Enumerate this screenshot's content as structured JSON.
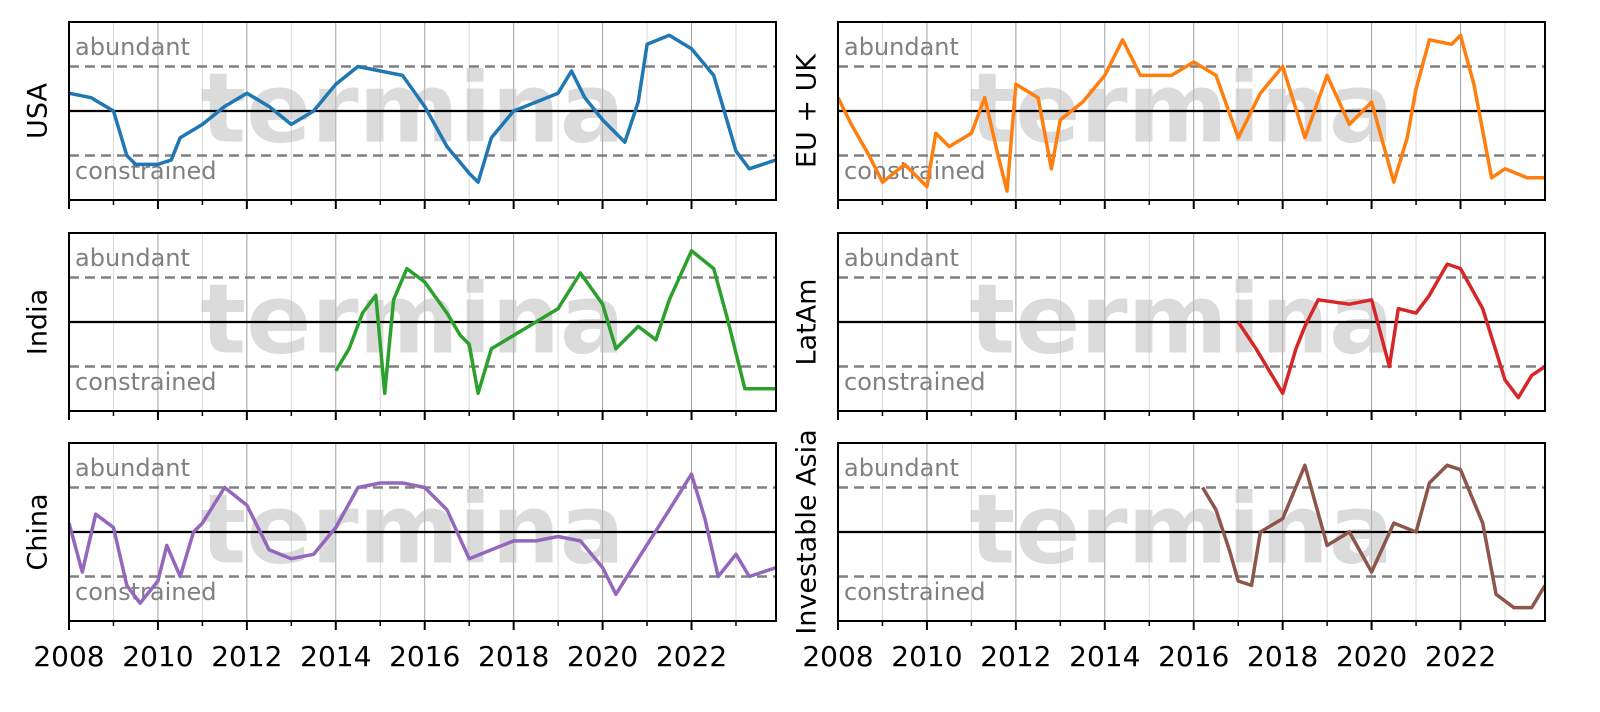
{
  "chart_data": [
    {
      "type": "line",
      "ylabel": "USA",
      "watermark": "termina",
      "grid": true,
      "show_xtick_labels": false,
      "xlim": [
        2008,
        2023.9
      ],
      "xticks": [
        2008,
        2010,
        2012,
        2014,
        2016,
        2018,
        2020,
        2022
      ],
      "xminorticks": [
        2009,
        2011,
        2013,
        2015,
        2017,
        2019,
        2021,
        2023
      ],
      "ylim": [
        -2,
        2
      ],
      "reference_lines": [
        {
          "value": 1,
          "label": "abundant",
          "style": "dashed"
        },
        {
          "value": 0,
          "style": "solid"
        },
        {
          "value": -1,
          "label": "constrained",
          "style": "dashed"
        }
      ],
      "x": [
        2008,
        2008.5,
        2009,
        2009.3,
        2009.5,
        2010,
        2010.3,
        2010.5,
        2011,
        2011.5,
        2012,
        2012.5,
        2013,
        2013.5,
        2014,
        2014.5,
        2015,
        2015.5,
        2016,
        2016.5,
        2017,
        2017.2,
        2017.5,
        2018,
        2018.5,
        2019,
        2019.3,
        2019.6,
        2020,
        2020.5,
        2020.8,
        2021,
        2021.5,
        2022,
        2022.5,
        2023,
        2023.3,
        2023.9
      ],
      "series": [
        {
          "color": "#1f77b4",
          "values": [
            0.4,
            0.3,
            0,
            -1.0,
            -1.2,
            -1.2,
            -1.1,
            -0.6,
            -0.3,
            0.1,
            0.4,
            0.1,
            -0.3,
            0,
            0.6,
            1.0,
            0.9,
            0.8,
            0.1,
            -0.8,
            -1.4,
            -1.6,
            -0.6,
            0.0,
            0.2,
            0.4,
            0.9,
            0.3,
            -0.2,
            -0.7,
            0.2,
            1.5,
            1.7,
            1.4,
            0.8,
            -0.9,
            -1.3,
            -1.1
          ]
        }
      ]
    },
    {
      "type": "line",
      "ylabel": "EU + UK",
      "watermark": "termina",
      "grid": true,
      "show_xtick_labels": false,
      "xlim": [
        2008,
        2023.9
      ],
      "xticks": [
        2008,
        2010,
        2012,
        2014,
        2016,
        2018,
        2020,
        2022
      ],
      "xminorticks": [
        2009,
        2011,
        2013,
        2015,
        2017,
        2019,
        2021,
        2023
      ],
      "ylim": [
        -2,
        2
      ],
      "reference_lines": [
        {
          "value": 1,
          "label": "abundant",
          "style": "dashed"
        },
        {
          "value": 0,
          "style": "solid"
        },
        {
          "value": -1,
          "label": "constrained",
          "style": "dashed"
        }
      ],
      "x": [
        2008,
        2008.3,
        2008.7,
        2009,
        2009.5,
        2010,
        2010.2,
        2010.5,
        2011,
        2011.3,
        2011.6,
        2011.8,
        2012,
        2012.5,
        2012.8,
        2013,
        2013.5,
        2014,
        2014.4,
        2014.8,
        2015.5,
        2016,
        2016.5,
        2017,
        2017.5,
        2018,
        2018.5,
        2019,
        2019.5,
        2020,
        2020.5,
        2020.8,
        2021,
        2021.3,
        2021.8,
        2022,
        2022.3,
        2022.7,
        2023,
        2023.5,
        2023.9
      ],
      "series": [
        {
          "color": "#ff7f0e",
          "values": [
            0.3,
            -0.3,
            -1.0,
            -1.6,
            -1.2,
            -1.7,
            -0.5,
            -0.8,
            -0.5,
            0.3,
            -1.0,
            -1.8,
            0.6,
            0.3,
            -1.3,
            -0.2,
            0.2,
            0.8,
            1.6,
            0.8,
            0.8,
            1.1,
            0.8,
            -0.6,
            0.4,
            1.0,
            -0.6,
            0.8,
            -0.3,
            0.2,
            -1.6,
            -0.6,
            0.5,
            1.6,
            1.5,
            1.7,
            0.6,
            -1.5,
            -1.3,
            -1.5,
            -1.5
          ]
        }
      ]
    },
    {
      "type": "line",
      "ylabel": "India",
      "watermark": "termina",
      "grid": true,
      "show_xtick_labels": false,
      "xlim": [
        2008,
        2023.9
      ],
      "xticks": [
        2008,
        2010,
        2012,
        2014,
        2016,
        2018,
        2020,
        2022
      ],
      "xminorticks": [
        2009,
        2011,
        2013,
        2015,
        2017,
        2019,
        2021,
        2023
      ],
      "ylim": [
        -2,
        2
      ],
      "reference_lines": [
        {
          "value": 1,
          "label": "abundant",
          "style": "dashed"
        },
        {
          "value": 0,
          "style": "solid"
        },
        {
          "value": -1,
          "label": "constrained",
          "style": "dashed"
        }
      ],
      "x": [
        2014,
        2014.3,
        2014.6,
        2014.9,
        2015.1,
        2015.3,
        2015.6,
        2016,
        2016.5,
        2016.8,
        2017,
        2017.2,
        2017.5,
        2018,
        2018.5,
        2019,
        2019.5,
        2020,
        2020.3,
        2020.8,
        2021.2,
        2021.5,
        2022,
        2022.5,
        2022.8,
        2023.2,
        2023.9
      ],
      "series": [
        {
          "color": "#2ca02c",
          "values": [
            -1.1,
            -0.6,
            0.2,
            0.6,
            -1.6,
            0.5,
            1.2,
            0.9,
            0.2,
            -0.3,
            -0.5,
            -1.6,
            -0.6,
            -0.3,
            0,
            0.3,
            1.1,
            0.4,
            -0.6,
            -0.1,
            -0.4,
            0.5,
            1.6,
            1.2,
            0.1,
            -1.5,
            -1.5
          ]
        }
      ]
    },
    {
      "type": "line",
      "ylabel": "LatAm",
      "watermark": "termina",
      "grid": true,
      "show_xtick_labels": false,
      "xlim": [
        2008,
        2023.9
      ],
      "xticks": [
        2008,
        2010,
        2012,
        2014,
        2016,
        2018,
        2020,
        2022
      ],
      "xminorticks": [
        2009,
        2011,
        2013,
        2015,
        2017,
        2019,
        2021,
        2023
      ],
      "ylim": [
        -2,
        2
      ],
      "reference_lines": [
        {
          "value": 1,
          "label": "abundant",
          "style": "dashed"
        },
        {
          "value": 0,
          "style": "solid"
        },
        {
          "value": -1,
          "label": "constrained",
          "style": "dashed"
        }
      ],
      "x": [
        2017,
        2017.4,
        2018,
        2018.3,
        2018.5,
        2018.8,
        2019.5,
        2020,
        2020.4,
        2020.6,
        2021,
        2021.3,
        2021.7,
        2022,
        2022.5,
        2023,
        2023.3,
        2023.6,
        2023.9
      ],
      "series": [
        {
          "color": "#d62728",
          "values": [
            0,
            -0.6,
            -1.6,
            -0.6,
            -0.1,
            0.5,
            0.4,
            0.5,
            -1.0,
            0.3,
            0.2,
            0.6,
            1.3,
            1.2,
            0.3,
            -1.3,
            -1.7,
            -1.2,
            -1.0
          ]
        }
      ]
    },
    {
      "type": "line",
      "ylabel": "China",
      "watermark": "termina",
      "grid": true,
      "show_xtick_labels": true,
      "xlim": [
        2008,
        2023.9
      ],
      "xticks": [
        2008,
        2010,
        2012,
        2014,
        2016,
        2018,
        2020,
        2022
      ],
      "xminorticks": [
        2009,
        2011,
        2013,
        2015,
        2017,
        2019,
        2021,
        2023
      ],
      "ylim": [
        -2,
        2
      ],
      "reference_lines": [
        {
          "value": 1,
          "label": "abundant",
          "style": "dashed"
        },
        {
          "value": 0,
          "style": "solid"
        },
        {
          "value": -1,
          "label": "constrained",
          "style": "dashed"
        }
      ],
      "x": [
        2008,
        2008.3,
        2008.6,
        2009,
        2009.3,
        2009.6,
        2010,
        2010.2,
        2010.5,
        2010.8,
        2011,
        2011.5,
        2012,
        2012.5,
        2013,
        2013.5,
        2014,
        2014.5,
        2015,
        2015.5,
        2016,
        2016.5,
        2017,
        2017.5,
        2018,
        2018.5,
        2019,
        2019.5,
        2020,
        2020.3,
        2020.8,
        2021.5,
        2022,
        2022.3,
        2022.6,
        2023,
        2023.3,
        2023.9
      ],
      "series": [
        {
          "color": "#9467bd",
          "values": [
            0.2,
            -0.9,
            0.4,
            0.1,
            -1.2,
            -1.6,
            -1.1,
            -0.3,
            -1.0,
            0.0,
            0.2,
            1.0,
            0.6,
            -0.4,
            -0.6,
            -0.5,
            0.1,
            1.0,
            1.1,
            1.1,
            1.0,
            0.5,
            -0.6,
            -0.4,
            -0.2,
            -0.2,
            -0.1,
            -0.2,
            -0.8,
            -1.4,
            -0.6,
            0.5,
            1.3,
            0.3,
            -1.0,
            -0.5,
            -1.0,
            -0.8
          ]
        }
      ]
    },
    {
      "type": "line",
      "ylabel": "Investable Asia",
      "watermark": "termina",
      "grid": true,
      "show_xtick_labels": true,
      "xlim": [
        2008,
        2023.9
      ],
      "xticks": [
        2008,
        2010,
        2012,
        2014,
        2016,
        2018,
        2020,
        2022
      ],
      "xminorticks": [
        2009,
        2011,
        2013,
        2015,
        2017,
        2019,
        2021,
        2023
      ],
      "ylim": [
        -2,
        2
      ],
      "reference_lines": [
        {
          "value": 1,
          "label": "abundant",
          "style": "dashed"
        },
        {
          "value": 0,
          "style": "solid"
        },
        {
          "value": -1,
          "label": "constrained",
          "style": "dashed"
        }
      ],
      "x": [
        2016.2,
        2016.5,
        2016.8,
        2017,
        2017.3,
        2017.5,
        2018,
        2018.5,
        2019,
        2019.5,
        2020,
        2020.5,
        2021,
        2021.3,
        2021.7,
        2022,
        2022.5,
        2022.8,
        2023.2,
        2023.6,
        2023.9
      ],
      "series": [
        {
          "color": "#8c564b",
          "values": [
            1.0,
            0.5,
            -0.4,
            -1.1,
            -1.2,
            0.0,
            0.3,
            1.5,
            -0.3,
            0.0,
            -0.9,
            0.2,
            0.0,
            1.1,
            1.5,
            1.4,
            0.2,
            -1.4,
            -1.7,
            -1.7,
            -1.2
          ]
        }
      ]
    }
  ]
}
